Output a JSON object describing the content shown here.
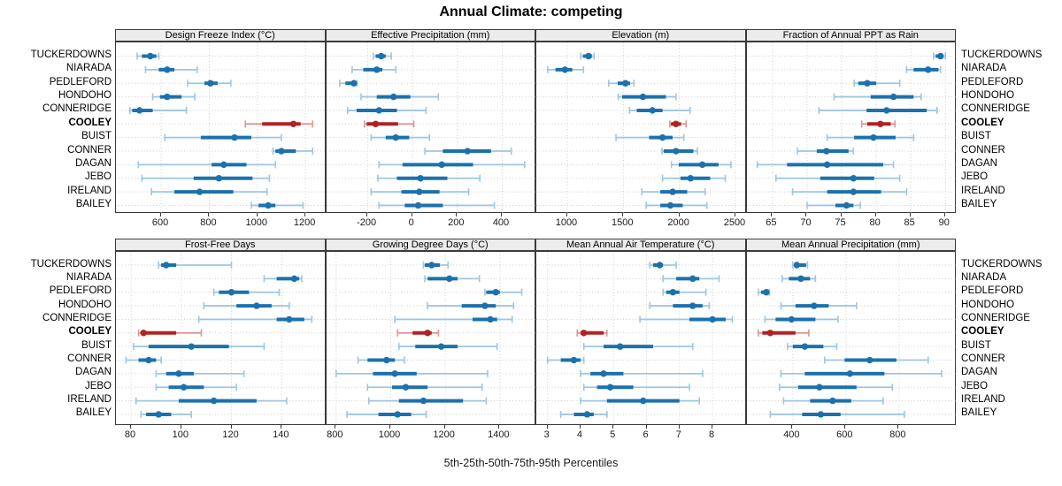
{
  "title": "Annual Climate: competing",
  "footer": "5th-25th-50th-75th-95th Percentiles",
  "locations": [
    "TUCKERDOWNS",
    "NIARADA",
    "PEDLEFORD",
    "HONDOHO",
    "CONNERIDGE",
    "COOLEY",
    "BUIST",
    "CONNER",
    "DAGAN",
    "JEBO",
    "IRELAND",
    "BAILEY"
  ],
  "highlighted_location": "COOLEY",
  "colors": {
    "series_blue": "#1c71ad",
    "series_blue_light": "#9fc6e0",
    "highlight_red": "#b02323",
    "highlight_red_light": "#e09595",
    "strip_bg": "#ececec",
    "grid": "#cfcfcf",
    "border": "#3a3a3a"
  },
  "chart_data": {
    "type": "dotplot-percentiles",
    "percentiles": [
      5,
      25,
      50,
      75,
      95
    ],
    "note": "Each row shows 5th-25th-50th-75th-95th percentile whisker/box/dot per location",
    "panels": [
      {
        "title": "Design Freeze Index (°C)",
        "grid_row": 0,
        "grid_col": 0,
        "ticks": [
          600,
          800,
          1000,
          1200
        ],
        "xlim": [
          412,
          1286
        ],
        "values": [
          [
            500,
            520,
            555,
            580,
            590
          ],
          [
            535,
            590,
            625,
            655,
            750
          ],
          [
            710,
            780,
            805,
            835,
            890
          ],
          [
            565,
            595,
            625,
            685,
            740
          ],
          [
            470,
            480,
            510,
            565,
            705
          ],
          [
            950,
            1020,
            1150,
            1180,
            1230
          ],
          [
            615,
            765,
            905,
            975,
            1100
          ],
          [
            1065,
            1075,
            1100,
            1160,
            1230
          ],
          [
            505,
            810,
            860,
            955,
            1075
          ],
          [
            520,
            735,
            840,
            980,
            1050
          ],
          [
            560,
            655,
            760,
            900,
            1040
          ],
          [
            975,
            1005,
            1045,
            1075,
            1190
          ]
        ]
      },
      {
        "title": "Effective Precipitation (mm)",
        "grid_row": 0,
        "grid_col": 1,
        "ticks": [
          -200,
          0,
          200,
          400
        ],
        "xlim": [
          -384,
          554
        ],
        "values": [
          [
            -175,
            -165,
            -140,
            -120,
            -95
          ],
          [
            -270,
            -220,
            -160,
            -135,
            -75
          ],
          [
            -325,
            -300,
            -262,
            -252,
            -248
          ],
          [
            -230,
            -160,
            -85,
            -10,
            115
          ],
          [
            -290,
            -250,
            -150,
            -70,
            60
          ],
          [
            -215,
            -205,
            -165,
            -65,
            5
          ],
          [
            -185,
            -120,
            -75,
            -15,
            75
          ],
          [
            55,
            135,
            245,
            350,
            440
          ],
          [
            -150,
            -45,
            130,
            270,
            500
          ],
          [
            -155,
            -70,
            35,
            155,
            300
          ],
          [
            -185,
            -50,
            30,
            120,
            250
          ],
          [
            -150,
            -35,
            25,
            135,
            365
          ]
        ]
      },
      {
        "title": "Elevation (m)",
        "grid_row": 0,
        "grid_col": 2,
        "ticks": [
          1000,
          1500,
          2000,
          2500
        ],
        "xlim": [
          724,
          2599
        ],
        "values": [
          [
            1120,
            1140,
            1190,
            1220,
            1240
          ],
          [
            825,
            895,
            980,
            1045,
            1145
          ],
          [
            1370,
            1450,
            1520,
            1560,
            1595
          ],
          [
            1455,
            1490,
            1675,
            1880,
            1970
          ],
          [
            1555,
            1620,
            1760,
            1850,
            2095
          ],
          [
            1915,
            1925,
            1970,
            2015,
            2060
          ],
          [
            1435,
            1730,
            1850,
            1940,
            2040
          ],
          [
            1845,
            1860,
            1970,
            2125,
            2160
          ],
          [
            1930,
            1995,
            2205,
            2350,
            2460
          ],
          [
            1850,
            2010,
            2100,
            2275,
            2410
          ],
          [
            1665,
            1830,
            1940,
            2070,
            2230
          ],
          [
            1705,
            1830,
            1920,
            2030,
            2245
          ]
        ]
      },
      {
        "title": "Fraction of Annual PPT as Rain",
        "grid_row": 0,
        "grid_col": 3,
        "ticks": [
          65,
          70,
          75,
          80,
          85,
          90
        ],
        "xlim": [
          61.3,
          91.7
        ],
        "values": [
          [
            88.3,
            88.6,
            89.3,
            89.7,
            90.0
          ],
          [
            84.4,
            85.4,
            87.5,
            89.0,
            89.3
          ],
          [
            76.8,
            77.4,
            78.7,
            80.0,
            83.4
          ],
          [
            73.9,
            79.2,
            82.5,
            85.4,
            86.5
          ],
          [
            71.7,
            78.6,
            81.5,
            87.3,
            88.8
          ],
          [
            77.9,
            78.7,
            80.6,
            82.1,
            82.7
          ],
          [
            72.9,
            76.8,
            79.6,
            82.8,
            85.4
          ],
          [
            68.6,
            71.4,
            72.8,
            76.0,
            76.7
          ],
          [
            62.8,
            67.1,
            72.9,
            81.0,
            82.5
          ],
          [
            65.5,
            71.9,
            76.7,
            79.7,
            83.4
          ],
          [
            67.9,
            72.9,
            76.7,
            80.7,
            84.4
          ],
          [
            70.0,
            74.1,
            75.7,
            76.7,
            77.7
          ]
        ]
      },
      {
        "title": "Frost-Free Days",
        "grid_row": 1,
        "grid_col": 0,
        "ticks": [
          80,
          100,
          120,
          140
        ],
        "xlim": [
          74,
          157.7
        ],
        "values": [
          [
            91,
            92,
            94,
            98,
            120
          ],
          [
            133,
            138,
            145,
            147,
            148
          ],
          [
            113,
            115,
            120,
            127,
            139
          ],
          [
            109,
            122,
            130,
            136,
            143
          ],
          [
            107,
            138,
            143,
            149,
            152
          ],
          [
            83,
            84,
            85,
            98,
            108
          ],
          [
            81,
            87,
            104,
            119,
            133
          ],
          [
            78,
            83,
            87,
            90,
            92
          ],
          [
            90,
            94,
            99,
            105,
            125
          ],
          [
            90,
            95,
            101,
            109,
            122
          ],
          [
            82,
            99,
            113,
            130,
            142
          ],
          [
            84,
            86,
            91,
            96,
            104
          ]
        ]
      },
      {
        "title": "Growing Degree Days (°C)",
        "grid_row": 1,
        "grid_col": 1,
        "ticks": [
          800,
          1000,
          1200,
          1400
        ],
        "xlim": [
          765,
          1535
        ],
        "values": [
          [
            1120,
            1125,
            1150,
            1180,
            1210
          ],
          [
            1125,
            1135,
            1215,
            1245,
            1325
          ],
          [
            1345,
            1350,
            1385,
            1400,
            1480
          ],
          [
            1135,
            1260,
            1345,
            1385,
            1450
          ],
          [
            1015,
            1300,
            1365,
            1390,
            1445
          ],
          [
            1025,
            1080,
            1135,
            1150,
            1175
          ],
          [
            1030,
            1090,
            1185,
            1245,
            1390
          ],
          [
            880,
            915,
            985,
            1015,
            1050
          ],
          [
            800,
            935,
            1015,
            1095,
            1355
          ],
          [
            915,
            1005,
            1055,
            1135,
            1335
          ],
          [
            920,
            1030,
            1120,
            1265,
            1350
          ],
          [
            840,
            955,
            1025,
            1075,
            1130
          ]
        ]
      },
      {
        "title": "Mean Annual Air Temperature (°C)",
        "grid_row": 1,
        "grid_col": 2,
        "ticks": [
          3,
          4,
          5,
          6,
          7,
          8
        ],
        "xlim": [
          2.66,
          9.03
        ],
        "values": [
          [
            6.1,
            6.2,
            6.4,
            6.5,
            6.9
          ],
          [
            6.5,
            6.9,
            7.4,
            7.6,
            8.2
          ],
          [
            6.5,
            6.6,
            6.8,
            7.0,
            7.8
          ],
          [
            6.1,
            6.8,
            7.4,
            7.7,
            7.9
          ],
          [
            5.8,
            7.3,
            8.0,
            8.4,
            8.6
          ],
          [
            3.9,
            4.0,
            4.1,
            4.7,
            4.8
          ],
          [
            4.1,
            4.7,
            5.2,
            6.2,
            7.4
          ],
          [
            3.0,
            3.4,
            3.8,
            4.0,
            4.1
          ],
          [
            4.0,
            4.3,
            4.7,
            5.3,
            7.7
          ],
          [
            4.1,
            4.5,
            4.9,
            5.6,
            7.3
          ],
          [
            4.0,
            4.8,
            5.9,
            7.0,
            7.6
          ],
          [
            3.4,
            3.8,
            4.2,
            4.4,
            4.8
          ]
        ]
      },
      {
        "title": "Mean Annual Precipitation (mm)",
        "grid_row": 1,
        "grid_col": 3,
        "ticks": [
          400,
          600,
          800
        ],
        "xlim": [
          227,
          1019
        ],
        "values": [
          [
            400,
            405,
            415,
            450,
            455
          ],
          [
            360,
            385,
            430,
            465,
            485
          ],
          [
            270,
            280,
            300,
            310,
            312
          ],
          [
            355,
            410,
            480,
            535,
            640
          ],
          [
            295,
            335,
            395,
            485,
            570
          ],
          [
            270,
            285,
            315,
            410,
            460
          ],
          [
            380,
            400,
            445,
            515,
            565
          ],
          [
            520,
            595,
            690,
            790,
            910
          ],
          [
            355,
            445,
            615,
            745,
            960
          ],
          [
            350,
            420,
            500,
            640,
            775
          ],
          [
            365,
            465,
            550,
            620,
            740
          ],
          [
            315,
            435,
            505,
            580,
            820
          ]
        ]
      }
    ]
  }
}
